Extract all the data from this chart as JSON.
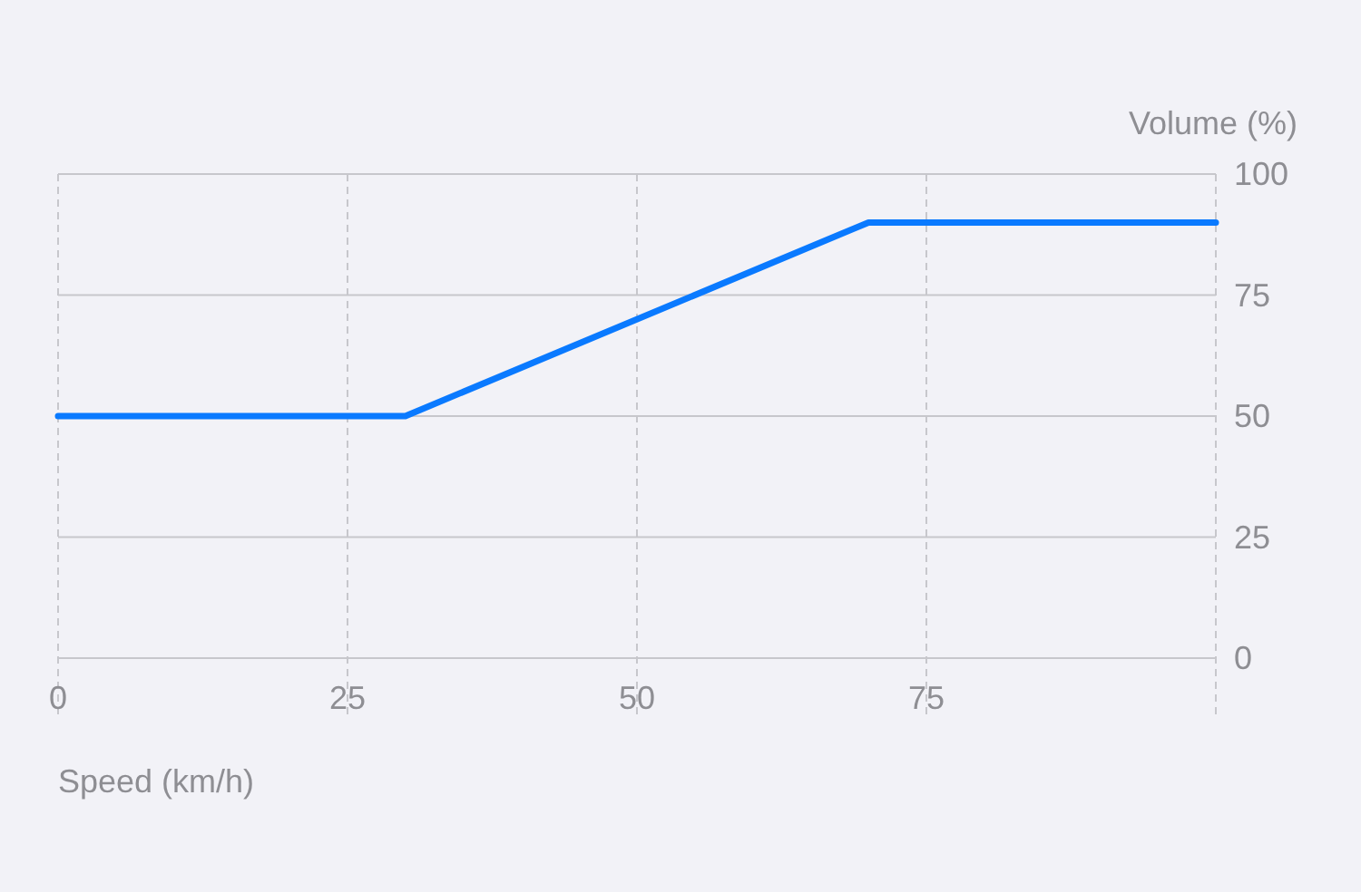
{
  "chart_data": {
    "type": "line",
    "xlabel": "Speed (km/h)",
    "ylabel": "Volume (%)",
    "x": [
      0,
      30,
      70,
      100
    ],
    "series": [
      {
        "color": "#0a7aff",
        "values": [
          50,
          50,
          90,
          90
        ]
      }
    ],
    "xlim": [
      0,
      100
    ],
    "ylim": [
      0,
      100
    ],
    "xticks": [
      0,
      25,
      50,
      75
    ],
    "yticks": [
      0,
      25,
      50,
      75,
      100
    ],
    "grid": true,
    "marker": "none",
    "line_style": "solid"
  }
}
